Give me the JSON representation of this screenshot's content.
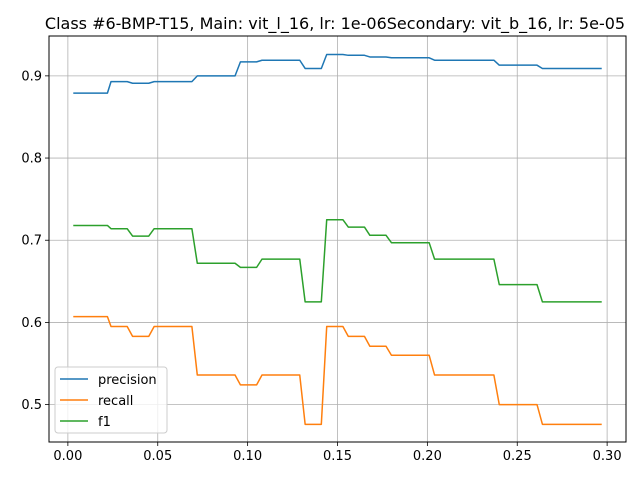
{
  "chart_data": {
    "type": "line",
    "title": "Class #6-BMP-T15, Main: vit_l_16, lr: 1e-06Secondary: vit_b_16, lr: 5e-05",
    "xlabel": "",
    "ylabel": "",
    "xlim": [
      -0.0105,
      0.3105
    ],
    "ylim": [
      0.4545,
      0.9485
    ],
    "xticks": [
      0.0,
      0.05,
      0.1,
      0.15,
      0.2,
      0.25,
      0.3
    ],
    "xtick_labels": [
      "0.00",
      "0.05",
      "0.10",
      "0.15",
      "0.20",
      "0.25",
      "0.30"
    ],
    "yticks": [
      0.5,
      0.6,
      0.7,
      0.8,
      0.9
    ],
    "ytick_labels": [
      "0.5",
      "0.6",
      "0.7",
      "0.8",
      "0.9"
    ],
    "grid": true,
    "legend_position": "lower-left",
    "series": [
      {
        "name": "precision",
        "color": "#1f77b4",
        "points": [
          [
            0.003,
            0.879
          ],
          [
            0.022,
            0.879
          ],
          [
            0.024,
            0.893
          ],
          [
            0.033,
            0.893
          ],
          [
            0.036,
            0.891
          ],
          [
            0.045,
            0.891
          ],
          [
            0.048,
            0.893
          ],
          [
            0.069,
            0.893
          ],
          [
            0.072,
            0.9
          ],
          [
            0.093,
            0.9
          ],
          [
            0.096,
            0.917
          ],
          [
            0.105,
            0.917
          ],
          [
            0.108,
            0.919
          ],
          [
            0.129,
            0.919
          ],
          [
            0.132,
            0.909
          ],
          [
            0.141,
            0.909
          ],
          [
            0.144,
            0.926
          ],
          [
            0.153,
            0.926
          ],
          [
            0.156,
            0.925
          ],
          [
            0.165,
            0.925
          ],
          [
            0.168,
            0.923
          ],
          [
            0.177,
            0.923
          ],
          [
            0.18,
            0.922
          ],
          [
            0.201,
            0.922
          ],
          [
            0.204,
            0.919
          ],
          [
            0.237,
            0.919
          ],
          [
            0.24,
            0.913
          ],
          [
            0.261,
            0.913
          ],
          [
            0.264,
            0.909
          ],
          [
            0.297,
            0.909
          ]
        ]
      },
      {
        "name": "recall",
        "color": "#ff7f0e",
        "points": [
          [
            0.003,
            0.607
          ],
          [
            0.022,
            0.607
          ],
          [
            0.024,
            0.595
          ],
          [
            0.033,
            0.595
          ],
          [
            0.036,
            0.583
          ],
          [
            0.045,
            0.583
          ],
          [
            0.048,
            0.595
          ],
          [
            0.069,
            0.595
          ],
          [
            0.072,
            0.536
          ],
          [
            0.093,
            0.536
          ],
          [
            0.096,
            0.524
          ],
          [
            0.105,
            0.524
          ],
          [
            0.108,
            0.536
          ],
          [
            0.129,
            0.536
          ],
          [
            0.132,
            0.476
          ],
          [
            0.141,
            0.476
          ],
          [
            0.144,
            0.595
          ],
          [
            0.153,
            0.595
          ],
          [
            0.156,
            0.583
          ],
          [
            0.165,
            0.583
          ],
          [
            0.168,
            0.571
          ],
          [
            0.177,
            0.571
          ],
          [
            0.18,
            0.56
          ],
          [
            0.201,
            0.56
          ],
          [
            0.204,
            0.536
          ],
          [
            0.237,
            0.536
          ],
          [
            0.24,
            0.5
          ],
          [
            0.261,
            0.5
          ],
          [
            0.264,
            0.476
          ],
          [
            0.297,
            0.476
          ]
        ]
      },
      {
        "name": "f1",
        "color": "#2ca02c",
        "points": [
          [
            0.003,
            0.718
          ],
          [
            0.022,
            0.718
          ],
          [
            0.024,
            0.714
          ],
          [
            0.033,
            0.714
          ],
          [
            0.036,
            0.705
          ],
          [
            0.045,
            0.705
          ],
          [
            0.048,
            0.714
          ],
          [
            0.069,
            0.714
          ],
          [
            0.072,
            0.672
          ],
          [
            0.093,
            0.672
          ],
          [
            0.096,
            0.667
          ],
          [
            0.105,
            0.667
          ],
          [
            0.108,
            0.677
          ],
          [
            0.129,
            0.677
          ],
          [
            0.132,
            0.625
          ],
          [
            0.141,
            0.625
          ],
          [
            0.144,
            0.725
          ],
          [
            0.153,
            0.725
          ],
          [
            0.156,
            0.716
          ],
          [
            0.165,
            0.716
          ],
          [
            0.168,
            0.706
          ],
          [
            0.177,
            0.706
          ],
          [
            0.18,
            0.697
          ],
          [
            0.201,
            0.697
          ],
          [
            0.204,
            0.677
          ],
          [
            0.237,
            0.677
          ],
          [
            0.24,
            0.646
          ],
          [
            0.261,
            0.646
          ],
          [
            0.264,
            0.625
          ],
          [
            0.297,
            0.625
          ]
        ]
      }
    ]
  }
}
